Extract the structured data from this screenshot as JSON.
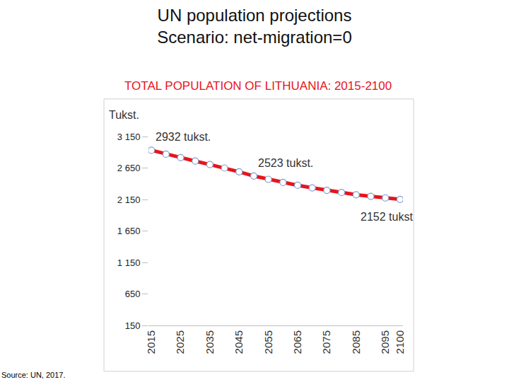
{
  "chart_data": {
    "type": "line",
    "slide_title": [
      "UN population projections",
      "Scenario: net-migration=0"
    ],
    "title": "TOTAL POPULATION OF LITHUANIA: 2015-2100",
    "ylabel": "Tukst.",
    "source": "Source: UN, 2017.",
    "x": [
      2015,
      2020,
      2025,
      2030,
      2035,
      2040,
      2045,
      2050,
      2055,
      2060,
      2065,
      2070,
      2075,
      2080,
      2085,
      2090,
      2095,
      2100
    ],
    "values": [
      2932,
      2870,
      2815,
      2760,
      2705,
      2650,
      2590,
      2523,
      2470,
      2420,
      2375,
      2335,
      2295,
      2260,
      2225,
      2200,
      2175,
      2152
    ],
    "color": "#e8141b",
    "marker": "circle",
    "line_style": "solid",
    "xlim": [
      2014,
      2101
    ],
    "xticks": [
      2015,
      2025,
      2035,
      2045,
      2055,
      2065,
      2075,
      2085,
      2095,
      2100
    ],
    "ylim": [
      150,
      3150
    ],
    "yticks": [
      150,
      650,
      {
        "value": 1150,
        "label": "1 150"
      },
      {
        "value": 1650,
        "label": "1 650"
      },
      {
        "value": 2150,
        "label": "2 150"
      },
      {
        "value": 2650,
        "label": "2 650"
      },
      {
        "value": 3150,
        "label": "3 150"
      }
    ],
    "grid": false,
    "annotations": [
      {
        "text": "2932 tukst.",
        "x": 2015
      },
      {
        "text": "2523 tukst.",
        "x": 2050
      },
      {
        "text": "2152 tukst",
        "x": 2100
      }
    ]
  }
}
